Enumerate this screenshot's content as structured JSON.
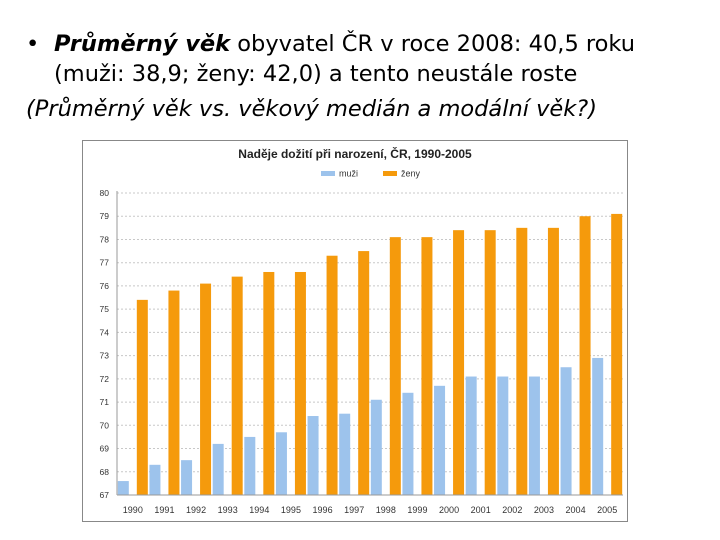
{
  "slide": {
    "bullet_bold": "Průměrný věk",
    "bullet_rest": " obyvatel ČR v roce 2008: 40,5 roku",
    "bullet_line2": "(muži: 38,9; ženy: 42,0) a tento neustále roste",
    "note": "(Průměrný věk vs. věkový medián a modální věk?)"
  },
  "chart_data": {
    "type": "bar",
    "title": "Naděje dožití při narození, ČR, 1990-2005",
    "categories": [
      "1990",
      "1991",
      "1992",
      "1993",
      "1994",
      "1995",
      "1996",
      "1997",
      "1998",
      "1999",
      "2000",
      "2001",
      "2002",
      "2003",
      "2004",
      "2005"
    ],
    "series": [
      {
        "name": "muži",
        "color": "#9dc3ec",
        "values": [
          67.6,
          68.3,
          68.5,
          69.2,
          69.5,
          69.7,
          70.4,
          70.5,
          71.1,
          71.4,
          71.7,
          72.1,
          72.1,
          72.1,
          72.5,
          72.9
        ]
      },
      {
        "name": "ženy",
        "color": "#f59a0c",
        "values": [
          75.4,
          75.8,
          76.1,
          76.4,
          76.6,
          76.6,
          77.3,
          77.5,
          78.1,
          78.1,
          78.4,
          78.4,
          78.5,
          78.5,
          79.0,
          79.1
        ]
      }
    ],
    "yticks": [
      "67",
      "68",
      "69",
      "70",
      "71",
      "72",
      "73",
      "74",
      "75",
      "76",
      "77",
      "78",
      "79",
      "80"
    ],
    "ylim": [
      67,
      80
    ],
    "legend": "top-center",
    "grid": true
  }
}
